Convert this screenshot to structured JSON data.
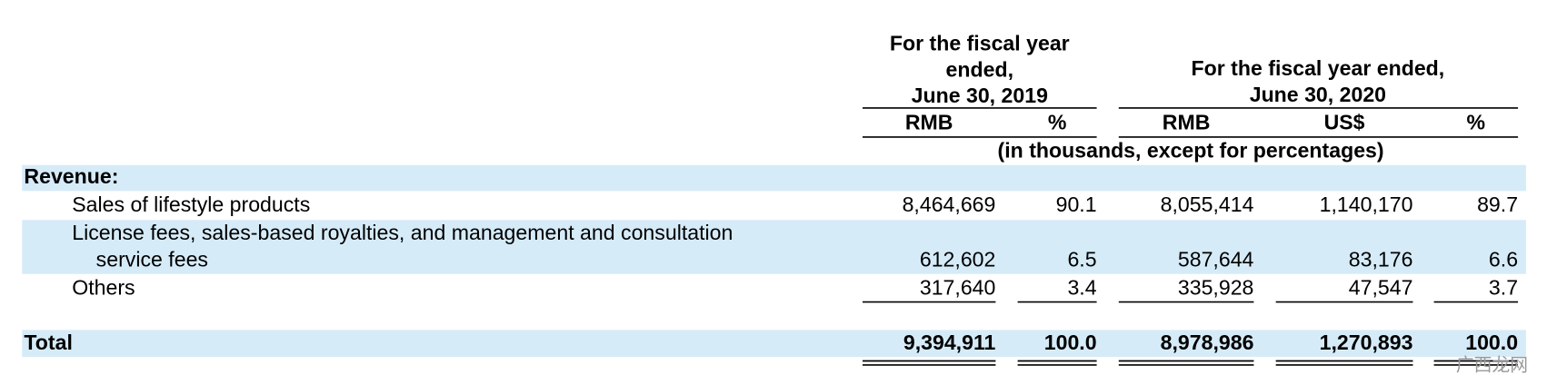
{
  "header": {
    "fy2019": [
      "For the fiscal year",
      "ended,",
      "June 30, 2019"
    ],
    "fy2020": [
      "For the fiscal year ended,",
      "June 30, 2020"
    ],
    "columns": [
      "RMB",
      "%",
      "RMB",
      "US$",
      "%"
    ],
    "unit_note": "(in thousands, except for percentages)"
  },
  "table": {
    "section": "Revenue:",
    "rows": [
      {
        "label": [
          "Sales of lifestyle products"
        ],
        "values": [
          "8,464,669",
          "90.1",
          "8,055,414",
          "1,140,170",
          "89.7"
        ]
      },
      {
        "label": [
          "License fees, sales-based royalties, and management and consultation",
          "service fees"
        ],
        "values": [
          "612,602",
          "6.5",
          "587,644",
          "83,176",
          "6.6"
        ]
      },
      {
        "label": [
          "Others"
        ],
        "values": [
          "317,640",
          "3.4",
          "335,928",
          "47,547",
          "3.7"
        ]
      }
    ],
    "total": {
      "label": "Total",
      "values": [
        "9,394,911",
        "100.0",
        "8,978,986",
        "1,270,893",
        "100.0"
      ]
    }
  },
  "watermark": "广西龙网"
}
